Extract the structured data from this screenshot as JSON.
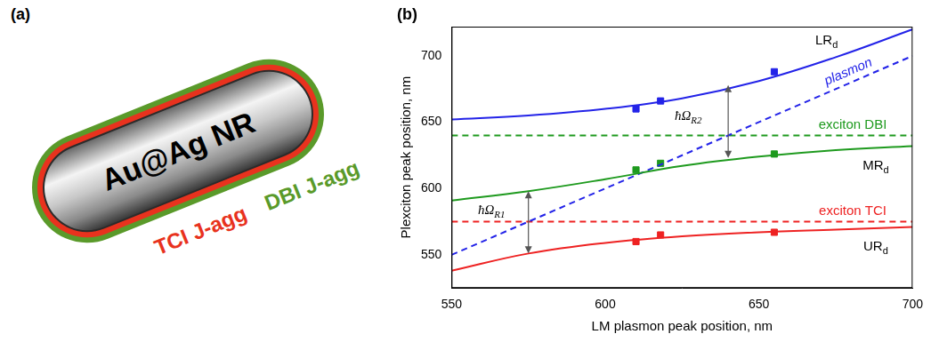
{
  "panel_labels": {
    "a": "(a)",
    "b": "(b)"
  },
  "diagram": {
    "core": "Au@Ag NR",
    "shells": [
      {
        "text": "TCI J-agg",
        "color": "#e8321e"
      },
      {
        "text": "DBI J-agg",
        "color": "#5a9a2a"
      }
    ]
  },
  "chart_data": {
    "type": "line",
    "x_label": "LM plasmon peak position, nm",
    "y_label": "Plexciton peak position, nm",
    "xlim": [
      550,
      700
    ],
    "xticks": [
      550,
      600,
      650,
      700
    ],
    "ylim": [
      525,
      722
    ],
    "yticks": [
      550,
      600,
      650,
      700
    ],
    "grid": false,
    "series": [
      {
        "type": "line",
        "color": "#2323e8",
        "line_style": "solid",
        "marker": "none",
        "x": [
          550,
          575,
          600,
          625,
          650,
          675,
          700
        ],
        "values": [
          652,
          655,
          660,
          668,
          681,
          699,
          720
        ]
      },
      {
        "type": "line",
        "color": "#1e9a1e",
        "line_style": "solid",
        "marker": "none",
        "x": [
          550,
          575,
          600,
          625,
          650,
          675,
          700
        ],
        "values": [
          591,
          598,
          607,
          617,
          624,
          629,
          632
        ]
      },
      {
        "type": "line",
        "color": "#ee2222",
        "line_style": "solid",
        "marker": "none",
        "x": [
          550,
          575,
          600,
          625,
          650,
          675,
          700
        ],
        "values": [
          538,
          551,
          559,
          564,
          567,
          569,
          571
        ]
      },
      {
        "name": "plasmon",
        "type": "line",
        "color": "#2323e8",
        "line_style": "dashed",
        "marker": "none",
        "x": [
          550,
          700
        ],
        "values": [
          550,
          700
        ]
      },
      {
        "name": "exciton DBI",
        "type": "line",
        "color": "#1e9a1e",
        "line_style": "dashed",
        "marker": "none",
        "x": [
          550,
          700
        ],
        "values": [
          640,
          640
        ]
      },
      {
        "name": "exciton TCI",
        "type": "line",
        "color": "#ee2222",
        "line_style": "dashed",
        "marker": "none",
        "x": [
          550,
          700
        ],
        "values": [
          575,
          575
        ]
      },
      {
        "type": "scatter",
        "color": "#2323e8",
        "marker": "square",
        "x": [
          610,
          618,
          655
        ],
        "values": [
          660,
          666,
          688
        ]
      },
      {
        "type": "scatter",
        "color": "#1e9a1e",
        "marker": "square",
        "x": [
          610,
          618,
          655
        ],
        "values": [
          614,
          619,
          626
        ]
      },
      {
        "type": "scatter",
        "color": "#ee2222",
        "marker": "square",
        "x": [
          610,
          618,
          655
        ],
        "values": [
          560,
          565,
          567
        ]
      }
    ],
    "annotations": [
      {
        "text": "LR",
        "sub": "d",
        "x": 672,
        "y": 712,
        "color": "#000000"
      },
      {
        "text": "MR",
        "sub": "d",
        "x": 688,
        "y": 618,
        "color": "#000000"
      },
      {
        "text": "UR",
        "sub": "d",
        "x": 688,
        "y": 557,
        "color": "#000000"
      },
      {
        "text": "ħΩ",
        "sub": "R1",
        "x": 563,
        "y": 584,
        "color": "#000000",
        "arrow": {
          "x": 575,
          "from": 551,
          "to": 598
        }
      },
      {
        "text": "ħΩ",
        "sub": "R2",
        "x": 627,
        "y": 655,
        "color": "#000000",
        "arrow": {
          "x": 640,
          "from": 623,
          "to": 678
        }
      }
    ]
  }
}
